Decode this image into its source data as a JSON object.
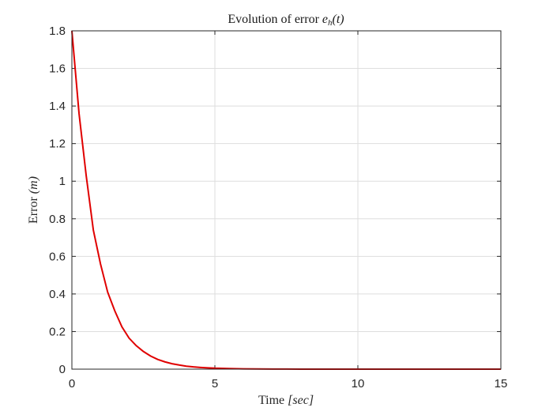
{
  "chart_data": {
    "type": "line",
    "title": "Evolution of error ",
    "title_math": "e",
    "title_sub": "h",
    "title_tail": "(t)",
    "xlabel": "Time ",
    "xlabel_unit": "[sec]",
    "ylabel": "Error ",
    "ylabel_unit": "(m)",
    "xlim": [
      0,
      15
    ],
    "ylim": [
      0,
      1.8
    ],
    "xticks": [
      "0",
      "5",
      "10",
      "15"
    ],
    "yticks": [
      "0",
      "0.2",
      "0.4",
      "0.6",
      "0.8",
      "1",
      "1.2",
      "1.4",
      "1.6",
      "1.8"
    ],
    "grid": true,
    "series": [
      {
        "color": "#e00000",
        "x": [
          0,
          0.25,
          0.5,
          0.75,
          1,
          1.25,
          1.5,
          1.75,
          2,
          2.25,
          2.5,
          2.75,
          3,
          3.25,
          3.5,
          3.75,
          4,
          4.25,
          4.5,
          4.75,
          5,
          5.5,
          6,
          6.5,
          7,
          7.5,
          8,
          9,
          10,
          11,
          12,
          13,
          14,
          15
        ],
        "y": [
          1.8,
          1.36,
          1.03,
          0.74,
          0.56,
          0.41,
          0.31,
          0.225,
          0.165,
          0.125,
          0.094,
          0.07,
          0.052,
          0.039,
          0.029,
          0.022,
          0.016,
          0.012,
          0.009,
          0.007,
          0.005,
          0.003,
          0.0017,
          0.001,
          0.0006,
          0.0003,
          0.0002,
          0.0001,
          0,
          0,
          0,
          0,
          0,
          0
        ]
      }
    ]
  }
}
